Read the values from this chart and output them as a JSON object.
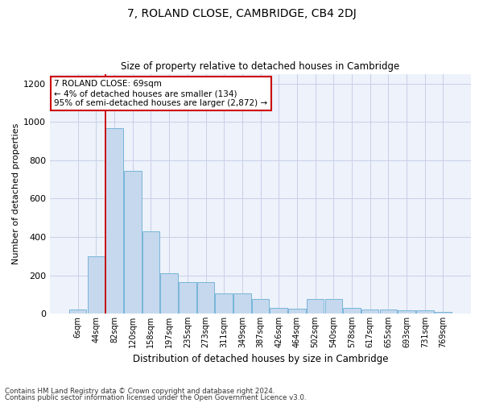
{
  "title": "7, ROLAND CLOSE, CAMBRIDGE, CB4 2DJ",
  "subtitle": "Size of property relative to detached houses in Cambridge",
  "xlabel": "Distribution of detached houses by size in Cambridge",
  "ylabel": "Number of detached properties",
  "bar_color": "#c5d8ed",
  "bar_edge_color": "#6aaed6",
  "background_color": "#edf2fb",
  "grid_color": "#c8cfe8",
  "categories": [
    "6sqm",
    "44sqm",
    "82sqm",
    "120sqm",
    "158sqm",
    "197sqm",
    "235sqm",
    "273sqm",
    "311sqm",
    "349sqm",
    "387sqm",
    "426sqm",
    "464sqm",
    "502sqm",
    "540sqm",
    "578sqm",
    "617sqm",
    "655sqm",
    "693sqm",
    "731sqm",
    "769sqm"
  ],
  "values": [
    20,
    300,
    970,
    745,
    430,
    210,
    165,
    165,
    105,
    105,
    75,
    30,
    25,
    75,
    75,
    30,
    20,
    20,
    15,
    15,
    10
  ],
  "property_line_color": "#cc0000",
  "annotation_text": "7 ROLAND CLOSE: 69sqm\n← 4% of detached houses are smaller (134)\n95% of semi-detached houses are larger (2,872) →",
  "annotation_box_color": "#cc0000",
  "ylim": [
    0,
    1250
  ],
  "yticks": [
    0,
    200,
    400,
    600,
    800,
    1000,
    1200
  ],
  "footnote1": "Contains HM Land Registry data © Crown copyright and database right 2024.",
  "footnote2": "Contains public sector information licensed under the Open Government Licence v3.0."
}
